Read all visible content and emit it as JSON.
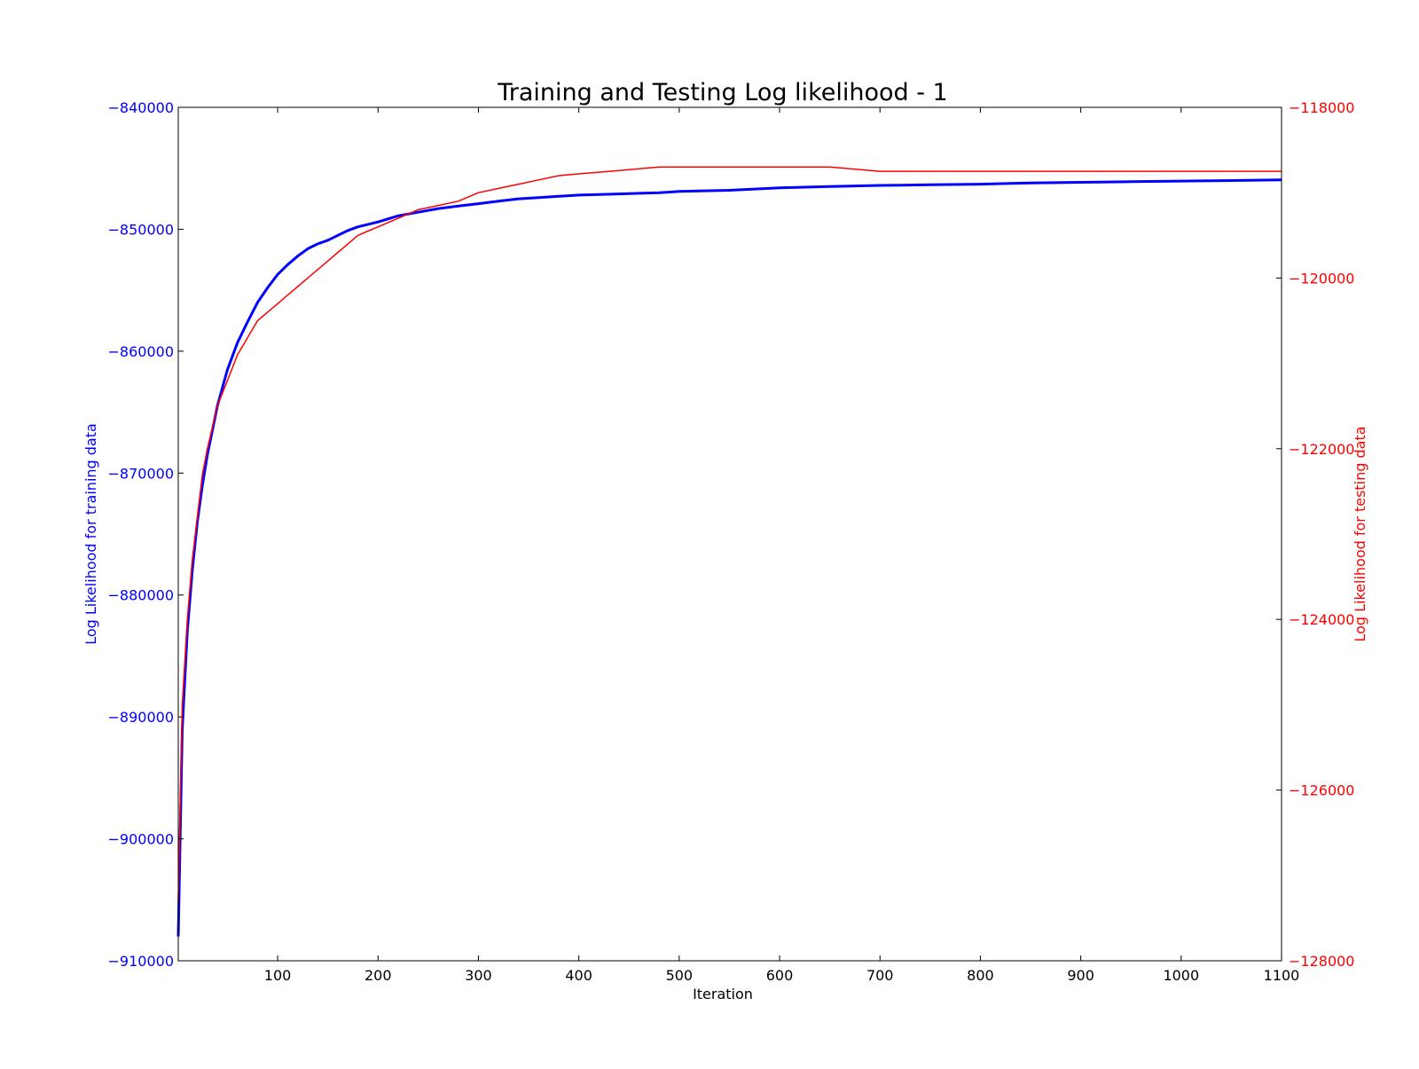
{
  "chart_data": {
    "type": "line",
    "title": "Training and Testing Log likelihood - 1",
    "xlabel": "Iteration",
    "ylabel_left": "Log Likelihood for training data",
    "ylabel_right": "Log Likelihood for testing data",
    "xlim": [
      1,
      1100
    ],
    "ylim_left": [
      -910000,
      -840000
    ],
    "ylim_right": [
      -128000,
      -118000
    ],
    "xticks": [
      100,
      200,
      300,
      400,
      500,
      600,
      700,
      800,
      900,
      1000,
      1100
    ],
    "xtick_labels": [
      "100",
      "200",
      "300",
      "400",
      "500",
      "600",
      "700",
      "800",
      "900",
      "1000",
      "1100"
    ],
    "yticks_left": [
      -840000,
      -850000,
      -860000,
      -870000,
      -880000,
      -890000,
      -900000,
      -910000
    ],
    "ytick_labels_left": [
      "−840000",
      "−850000",
      "−860000",
      "−870000",
      "−880000",
      "−890000",
      "−900000",
      "−910000"
    ],
    "yticks_right": [
      -118000,
      -120000,
      -122000,
      -124000,
      -126000,
      -128000
    ],
    "ytick_labels_right": [
      "−118000",
      "−120000",
      "−122000",
      "−124000",
      "−126000",
      "−128000"
    ],
    "grid": false,
    "series": [
      {
        "axis": "left",
        "color": "#0000ff",
        "x": [
          1,
          5,
          10,
          15,
          20,
          25,
          30,
          40,
          50,
          60,
          70,
          80,
          90,
          100,
          110,
          120,
          130,
          140,
          150,
          160,
          170,
          180,
          190,
          200,
          220,
          240,
          260,
          280,
          300,
          320,
          340,
          360,
          380,
          400,
          420,
          440,
          460,
          480,
          500,
          550,
          600,
          650,
          700,
          750,
          800,
          850,
          900,
          950,
          1000,
          1050,
          1100
        ],
        "values": [
          -908000,
          -891000,
          -883000,
          -878000,
          -874000,
          -871000,
          -868500,
          -864500,
          -861500,
          -859300,
          -857600,
          -856000,
          -854800,
          -853700,
          -852900,
          -852200,
          -851600,
          -851200,
          -850900,
          -850500,
          -850100,
          -849800,
          -849600,
          -849400,
          -848900,
          -848600,
          -848300,
          -848100,
          -847900,
          -847700,
          -847500,
          -847400,
          -847300,
          -847200,
          -847150,
          -847100,
          -847050,
          -847000,
          -846900,
          -846800,
          -846600,
          -846500,
          -846400,
          -846350,
          -846300,
          -846200,
          -846150,
          -846100,
          -846050,
          -846000,
          -845950
        ]
      },
      {
        "axis": "right",
        "color": "#ff0000",
        "x": [
          1,
          5,
          10,
          15,
          20,
          25,
          30,
          40,
          50,
          60,
          70,
          80,
          90,
          100,
          110,
          120,
          130,
          140,
          150,
          160,
          170,
          180,
          190,
          200,
          220,
          240,
          260,
          280,
          300,
          320,
          340,
          360,
          380,
          400,
          420,
          440,
          460,
          480,
          500,
          550,
          600,
          650,
          700,
          750,
          800,
          850,
          900,
          950,
          1000,
          1050,
          1100
        ],
        "values": [
          -127300,
          -125000,
          -124000,
          -123300,
          -122800,
          -122300,
          -122000,
          -121500,
          -121200,
          -120900,
          -120700,
          -120500,
          -120400,
          -120300,
          -120200,
          -120100,
          -120000,
          -119900,
          -119800,
          -119700,
          -119600,
          -119500,
          -119450,
          -119400,
          -119300,
          -119200,
          -119150,
          -119100,
          -119000,
          -118950,
          -118900,
          -118850,
          -118800,
          -118780,
          -118760,
          -118740,
          -118720,
          -118700,
          -118700,
          -118700,
          -118700,
          -118700,
          -118750,
          -118750,
          -118750,
          -118750,
          -118750,
          -118750,
          -118750,
          -118750,
          -118750
        ]
      }
    ]
  }
}
